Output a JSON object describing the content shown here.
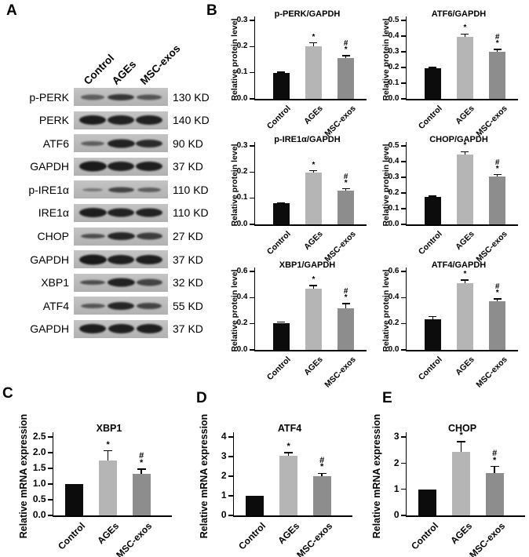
{
  "panels": {
    "a": "A",
    "b": "B",
    "c": "C",
    "d": "D",
    "e": "E"
  },
  "colors": {
    "control_bar": "#0c0c0c",
    "ages_bar": "#b5b5b5",
    "msc_exos_bar": "#8d8d8d",
    "axis": "#000000",
    "blot_background": "#bcbcbc",
    "band": "#121212"
  },
  "categories": [
    "Control",
    "AGEs",
    "MSC-exos"
  ],
  "western_blot": {
    "lane_headers": [
      "Control",
      "AGEs",
      "MSC-exos"
    ],
    "lane_centers": [
      24,
      60,
      96
    ],
    "rows": [
      {
        "label": "p-PERK",
        "kd": "130 KD",
        "bands": [
          [
            30,
            7,
            0.55
          ],
          [
            34,
            8,
            0.78
          ],
          [
            32,
            7,
            0.6
          ]
        ]
      },
      {
        "label": "PERK",
        "kd": "140 KD",
        "bands": [
          [
            34,
            12,
            0.93
          ],
          [
            34,
            12,
            0.9
          ],
          [
            34,
            12,
            0.9
          ]
        ]
      },
      {
        "label": "ATF6",
        "kd": "90 KD",
        "bands": [
          [
            30,
            6,
            0.55
          ],
          [
            35,
            11,
            0.9
          ],
          [
            34,
            10,
            0.85
          ]
        ]
      },
      {
        "label": "GAPDH",
        "kd": "37 KD",
        "bands": [
          [
            35,
            13,
            0.95
          ],
          [
            34,
            12,
            0.92
          ],
          [
            34,
            12,
            0.92
          ]
        ]
      },
      {
        "label": "p-IRE1α",
        "kd": "110 KD",
        "bands": [
          [
            26,
            4,
            0.4
          ],
          [
            33,
            7,
            0.7
          ],
          [
            30,
            6,
            0.55
          ]
        ]
      },
      {
        "label": "IRE1α",
        "kd": "110 KD",
        "bands": [
          [
            35,
            12,
            0.93
          ],
          [
            34,
            11,
            0.9
          ],
          [
            34,
            11,
            0.9
          ]
        ]
      },
      {
        "label": "CHOP",
        "kd": "27 KD",
        "bands": [
          [
            31,
            6,
            0.65
          ],
          [
            35,
            10,
            0.88
          ],
          [
            33,
            9,
            0.75
          ]
        ]
      },
      {
        "label": "GAPDH",
        "kd": "37 KD",
        "bands": [
          [
            35,
            13,
            0.95
          ],
          [
            34,
            12,
            0.92
          ],
          [
            34,
            12,
            0.92
          ]
        ]
      },
      {
        "label": "XBP1",
        "kd": "32 KD",
        "bands": [
          [
            32,
            6,
            0.65
          ],
          [
            35,
            11,
            0.9
          ],
          [
            33,
            9,
            0.7
          ]
        ]
      },
      {
        "label": "ATF4",
        "kd": "55 KD",
        "bands": [
          [
            31,
            6,
            0.6
          ],
          [
            34,
            10,
            0.88
          ],
          [
            32,
            8,
            0.7
          ]
        ]
      },
      {
        "label": "GAPDH",
        "kd": "37 KD",
        "bands": [
          [
            34,
            12,
            0.93
          ],
          [
            33,
            12,
            0.92
          ],
          [
            33,
            12,
            0.92
          ]
        ]
      }
    ]
  },
  "chart_data": [
    {
      "panel": "B1",
      "type": "bar",
      "title": "p-PERK/GAPDH",
      "ylabel": "Relative protein level",
      "categories": [
        "Control",
        "AGEs",
        "MSC-exos"
      ],
      "values": [
        0.098,
        0.202,
        0.155
      ],
      "errors": [
        0.004,
        0.012,
        0.01
      ],
      "annotations": [
        "",
        "*",
        "#*"
      ],
      "ylim": [
        0,
        0.3
      ],
      "yticks": [
        0,
        0.1,
        0.2,
        0.3
      ],
      "ytick_labels": [
        "0.0",
        "0.1",
        "0.2",
        "0.3"
      ]
    },
    {
      "panel": "B2",
      "type": "bar",
      "title": "ATF6/GAPDH",
      "ylabel": "Relative protein level",
      "categories": [
        "Control",
        "AGEs",
        "MSC-exos"
      ],
      "values": [
        0.195,
        0.395,
        0.302
      ],
      "errors": [
        0.006,
        0.018,
        0.014
      ],
      "annotations": [
        "",
        "*",
        "#*"
      ],
      "ylim": [
        0,
        0.5
      ],
      "yticks": [
        0,
        0.1,
        0.2,
        0.3,
        0.4,
        0.5
      ],
      "ytick_labels": [
        "0.0",
        "0.1",
        "0.2",
        "0.3",
        "0.4",
        "0.5"
      ]
    },
    {
      "panel": "B3",
      "type": "bar",
      "title": "p-IRE1α/GAPDH",
      "ylabel": "Relative protein level",
      "categories": [
        "Control",
        "AGEs",
        "MSC-exos"
      ],
      "values": [
        0.08,
        0.197,
        0.13
      ],
      "errors": [
        0.003,
        0.008,
        0.006
      ],
      "annotations": [
        "",
        "*",
        "#*"
      ],
      "ylim": [
        0,
        0.3
      ],
      "yticks": [
        0,
        0.1,
        0.2,
        0.3
      ],
      "ytick_labels": [
        "0.0",
        "0.1",
        "0.2",
        "0.3"
      ]
    },
    {
      "panel": "B4",
      "type": "bar",
      "title": "CHOP/GAPDH",
      "ylabel": "Relative protein level",
      "categories": [
        "Control",
        "AGEs",
        "MSC-exos"
      ],
      "values": [
        0.175,
        0.445,
        0.305
      ],
      "errors": [
        0.005,
        0.018,
        0.012
      ],
      "annotations": [
        "",
        "*",
        "#*"
      ],
      "ylim": [
        0,
        0.5
      ],
      "yticks": [
        0,
        0.1,
        0.2,
        0.3,
        0.4,
        0.5
      ],
      "ytick_labels": [
        "0.0",
        "0.1",
        "0.2",
        "0.3",
        "0.4",
        "0.5"
      ]
    },
    {
      "panel": "B5",
      "type": "bar",
      "title": "XBP1/GAPDH",
      "ylabel": "Relative protein level",
      "categories": [
        "Control",
        "AGEs",
        "MSC-exos"
      ],
      "values": [
        0.207,
        0.47,
        0.32
      ],
      "errors": [
        0.007,
        0.022,
        0.035
      ],
      "annotations": [
        "",
        "*",
        "#*"
      ],
      "ylim": [
        0,
        0.6
      ],
      "yticks": [
        0,
        0.2,
        0.4,
        0.6
      ],
      "ytick_labels": [
        "0.0",
        "0.2",
        "0.4",
        "0.6"
      ]
    },
    {
      "panel": "B6",
      "type": "bar",
      "title": "ATF4/GAPDH",
      "ylabel": "Relative protein level",
      "categories": [
        "Control",
        "AGEs",
        "MSC-exos"
      ],
      "values": [
        0.235,
        0.51,
        0.37
      ],
      "errors": [
        0.02,
        0.025,
        0.02
      ],
      "annotations": [
        "",
        "*",
        "#*"
      ],
      "ylim": [
        0,
        0.6
      ],
      "yticks": [
        0,
        0.2,
        0.4,
        0.6
      ],
      "ytick_labels": [
        "0.0",
        "0.2",
        "0.4",
        "0.6"
      ]
    },
    {
      "panel": "C",
      "type": "bar",
      "title": "XBP1",
      "ylabel": "Relative mRNA expression",
      "categories": [
        "Control",
        "AGEs",
        "MSC-exos"
      ],
      "values": [
        1.0,
        1.76,
        1.33
      ],
      "errors": [
        0,
        0.3,
        0.15
      ],
      "annotations": [
        "",
        "*",
        "#*"
      ],
      "ylim": [
        0,
        2.5
      ],
      "yticks": [
        0,
        0.5,
        1,
        1.5,
        2,
        2.5
      ],
      "ytick_labels": [
        "0.0",
        "0.5",
        "1.0",
        "1.5",
        "2.0",
        "2.5"
      ]
    },
    {
      "panel": "D",
      "type": "bar",
      "title": "ATF4",
      "ylabel": "Relative mRNA expression",
      "categories": [
        "Control",
        "AGEs",
        "MSC-exos"
      ],
      "values": [
        1.0,
        3.05,
        2.0
      ],
      "errors": [
        0,
        0.15,
        0.15
      ],
      "annotations": [
        "",
        "*",
        "#*"
      ],
      "ylim": [
        0,
        4
      ],
      "yticks": [
        0,
        1,
        2,
        3,
        4
      ],
      "ytick_labels": [
        "0",
        "1",
        "2",
        "3",
        "4"
      ]
    },
    {
      "panel": "E",
      "type": "bar",
      "title": "CHOP",
      "ylabel": "Relative mRNA expression",
      "categories": [
        "Control",
        "AGEs",
        "MSC-exos"
      ],
      "values": [
        1.0,
        2.42,
        1.63
      ],
      "errors": [
        0,
        0.4,
        0.25
      ],
      "annotations": [
        "",
        "*",
        "#*"
      ],
      "ylim": [
        0,
        3
      ],
      "yticks": [
        0,
        1,
        2,
        3
      ],
      "ytick_labels": [
        "0",
        "1",
        "2",
        "3"
      ]
    }
  ]
}
